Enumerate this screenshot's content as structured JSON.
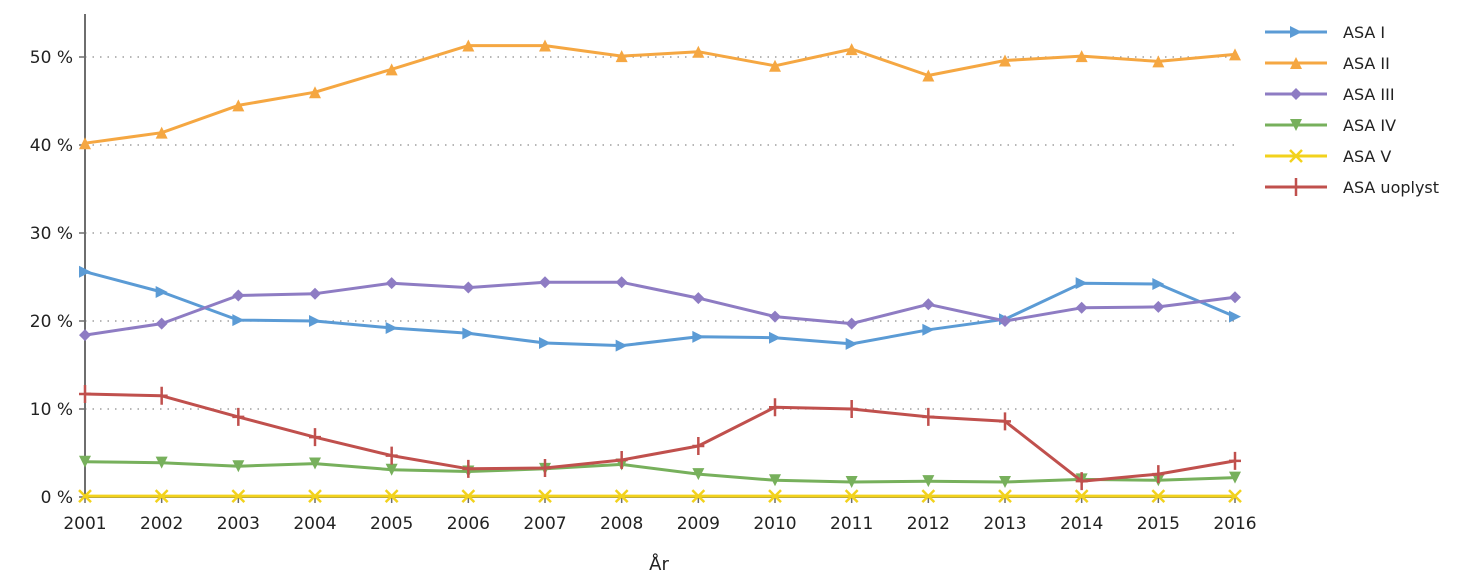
{
  "chart_data": {
    "type": "line",
    "title": "",
    "xlabel": "År",
    "ylabel": "",
    "x": [
      "2001",
      "2002",
      "2003",
      "2004",
      "2005",
      "2006",
      "2007",
      "2008",
      "2009",
      "2010",
      "2011",
      "2012",
      "2013",
      "2014",
      "2015",
      "2016"
    ],
    "y_ticks": [
      0,
      10,
      20,
      30,
      40,
      50
    ],
    "y_tick_labels": [
      "0 %",
      "10 %",
      "20 %",
      "30 %",
      "40 %",
      "50 %"
    ],
    "ylim": [
      0,
      55
    ],
    "grid": "horizontal dotted",
    "legend_position": "right",
    "series": [
      {
        "name": "ASA I",
        "color": "#5b9bd5",
        "marker": "triangle-right",
        "values": [
          25.6,
          23.3,
          20.1,
          20.0,
          19.2,
          18.6,
          17.5,
          17.2,
          18.2,
          18.1,
          17.4,
          19.0,
          20.2,
          24.3,
          24.2,
          20.5
        ]
      },
      {
        "name": "ASA II",
        "color": "#f5a742",
        "marker": "triangle-up",
        "values": [
          40.2,
          41.4,
          44.5,
          46.0,
          48.6,
          51.3,
          51.3,
          50.1,
          50.6,
          49.0,
          50.9,
          47.9,
          49.6,
          50.1,
          49.5,
          50.3
        ]
      },
      {
        "name": "ASA III",
        "color": "#8e7cc3",
        "marker": "diamond",
        "values": [
          18.4,
          19.7,
          22.9,
          23.1,
          24.3,
          23.8,
          24.4,
          24.4,
          22.6,
          20.5,
          19.7,
          21.9,
          20.0,
          21.5,
          21.6,
          22.7
        ]
      },
      {
        "name": "ASA IV",
        "color": "#77b05c",
        "marker": "triangle-down",
        "values": [
          4.0,
          3.9,
          3.5,
          3.8,
          3.1,
          2.9,
          3.2,
          3.7,
          2.6,
          1.9,
          1.7,
          1.8,
          1.7,
          2.0,
          1.9,
          2.2
        ]
      },
      {
        "name": "ASA V",
        "color": "#f2d21c",
        "marker": "x",
        "values": [
          0.1,
          0.1,
          0.1,
          0.1,
          0.1,
          0.1,
          0.1,
          0.1,
          0.1,
          0.1,
          0.1,
          0.1,
          0.1,
          0.1,
          0.1,
          0.1
        ]
      },
      {
        "name": "ASA uoplyst",
        "color": "#c0504d",
        "marker": "plus",
        "values": [
          11.7,
          11.5,
          9.1,
          6.8,
          4.7,
          3.2,
          3.3,
          4.2,
          5.8,
          10.2,
          10.0,
          9.1,
          8.6,
          1.8,
          2.6,
          4.1
        ]
      }
    ]
  }
}
